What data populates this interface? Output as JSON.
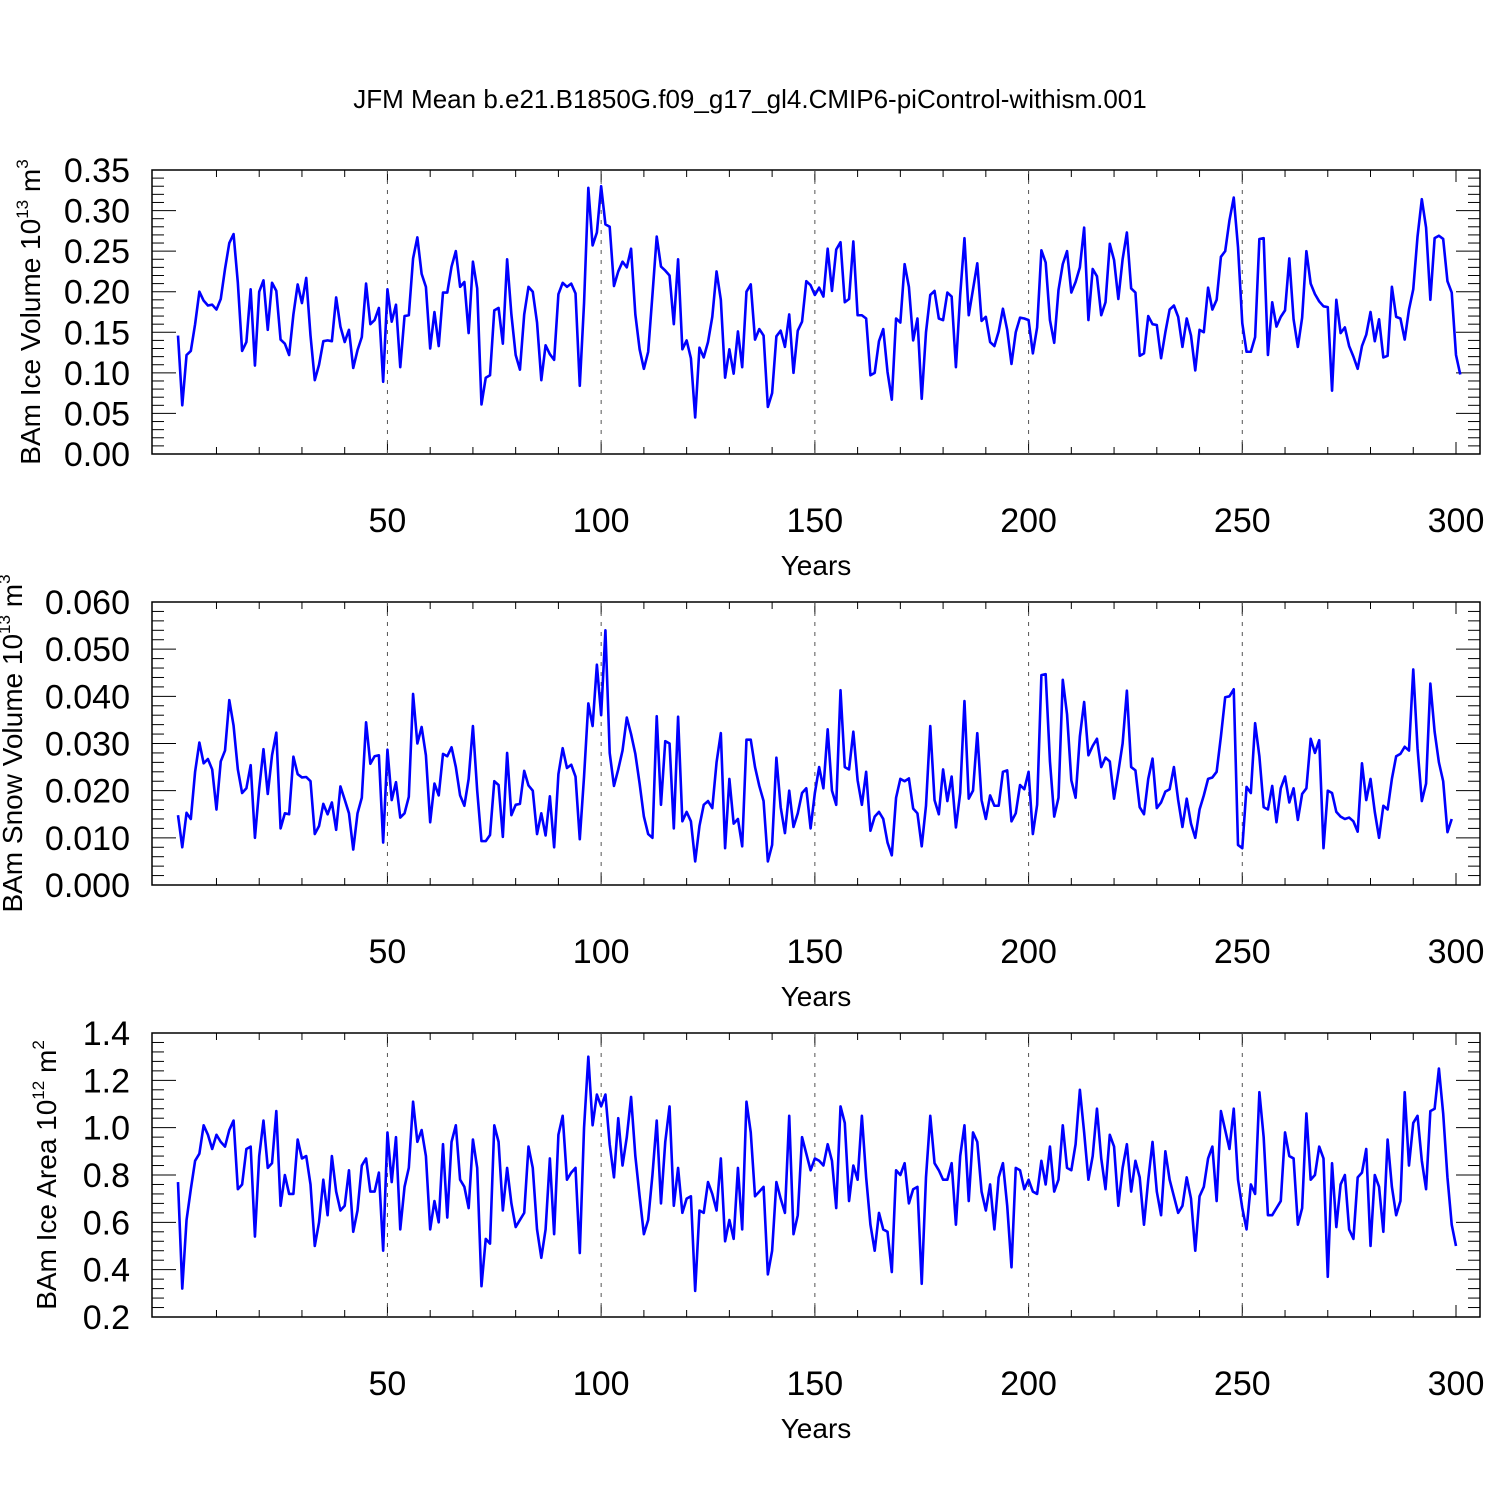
{
  "title": "JFM Mean b.e21.B1850G.f09_g17_gl4.CMIP6-piControl-withism.001",
  "chart_data": [
    {
      "type": "line",
      "ylabel_main": "BAm Ice Volume 10",
      "ylabel_exp": "13",
      "ylabel_unit": " m",
      "ylabel_unit_exp": "3",
      "xlabel": "Years",
      "xlim": [
        1,
        300
      ],
      "ylim": [
        0.0,
        0.35
      ],
      "xticks": [
        50,
        100,
        150,
        200,
        250,
        300
      ],
      "xtick_labels": [
        "50",
        "100",
        "150",
        "200",
        "250",
        "300"
      ],
      "yticks": [
        0.0,
        0.05,
        0.1,
        0.15,
        0.2,
        0.25,
        0.3,
        0.35
      ],
      "ytick_labels": [
        "0.00",
        "0.05",
        "0.10",
        "0.15",
        "0.20",
        "0.25",
        "0.30",
        "0.35"
      ],
      "color": "#0000ff",
      "values": [
        0.146,
        0.06,
        0.122,
        0.127,
        0.16,
        0.2,
        0.189,
        0.183,
        0.184,
        0.178,
        0.191,
        0.228,
        0.26,
        0.271,
        0.211,
        0.127,
        0.138,
        0.203,
        0.109,
        0.2,
        0.214,
        0.153,
        0.211,
        0.201,
        0.141,
        0.136,
        0.122,
        0.172,
        0.209,
        0.186,
        0.217,
        0.146,
        0.091,
        0.11,
        0.139,
        0.14,
        0.139,
        0.193,
        0.157,
        0.138,
        0.153,
        0.106,
        0.128,
        0.144,
        0.21,
        0.16,
        0.165,
        0.18,
        0.089,
        0.203,
        0.163,
        0.184,
        0.107,
        0.17,
        0.171,
        0.241,
        0.267,
        0.222,
        0.206,
        0.13,
        0.175,
        0.133,
        0.199,
        0.199,
        0.231,
        0.25,
        0.206,
        0.212,
        0.149,
        0.237,
        0.204,
        0.061,
        0.094,
        0.097,
        0.177,
        0.18,
        0.136,
        0.24,
        0.172,
        0.122,
        0.104,
        0.172,
        0.206,
        0.2,
        0.162,
        0.091,
        0.134,
        0.123,
        0.116,
        0.197,
        0.211,
        0.206,
        0.21,
        0.198,
        0.084,
        0.186,
        0.328,
        0.257,
        0.273,
        0.33,
        0.283,
        0.28,
        0.207,
        0.225,
        0.237,
        0.23,
        0.253,
        0.172,
        0.129,
        0.105,
        0.126,
        0.196,
        0.268,
        0.231,
        0.226,
        0.22,
        0.16,
        0.24,
        0.129,
        0.14,
        0.118,
        0.045,
        0.131,
        0.119,
        0.138,
        0.169,
        0.225,
        0.19,
        0.094,
        0.129,
        0.099,
        0.151,
        0.107,
        0.2,
        0.209,
        0.141,
        0.154,
        0.146,
        0.058,
        0.075,
        0.145,
        0.152,
        0.132,
        0.172,
        0.1,
        0.152,
        0.163,
        0.213,
        0.208,
        0.196,
        0.205,
        0.194,
        0.253,
        0.201,
        0.252,
        0.261,
        0.187,
        0.191,
        0.262,
        0.171,
        0.171,
        0.167,
        0.097,
        0.1,
        0.139,
        0.154,
        0.101,
        0.067,
        0.167,
        0.162,
        0.234,
        0.206,
        0.14,
        0.167,
        0.068,
        0.15,
        0.196,
        0.201,
        0.167,
        0.165,
        0.199,
        0.194,
        0.107,
        0.196,
        0.266,
        0.171,
        0.203,
        0.235,
        0.164,
        0.169,
        0.138,
        0.133,
        0.151,
        0.179,
        0.153,
        0.111,
        0.15,
        0.168,
        0.167,
        0.165,
        0.124,
        0.156,
        0.251,
        0.236,
        0.165,
        0.137,
        0.202,
        0.234,
        0.25,
        0.199,
        0.212,
        0.23,
        0.279,
        0.165,
        0.228,
        0.219,
        0.171,
        0.187,
        0.259,
        0.239,
        0.191,
        0.24,
        0.273,
        0.204,
        0.199,
        0.121,
        0.124,
        0.17,
        0.16,
        0.159,
        0.118,
        0.15,
        0.178,
        0.183,
        0.169,
        0.132,
        0.167,
        0.146,
        0.103,
        0.153,
        0.15,
        0.205,
        0.178,
        0.19,
        0.243,
        0.25,
        0.288,
        0.316,
        0.255,
        0.161,
        0.126,
        0.126,
        0.144,
        0.265,
        0.266,
        0.122,
        0.187,
        0.157,
        0.169,
        0.177,
        0.241,
        0.166,
        0.132,
        0.168,
        0.25,
        0.21,
        0.197,
        0.188,
        0.182,
        0.181,
        0.078,
        0.19,
        0.149,
        0.156,
        0.133,
        0.12,
        0.105,
        0.133,
        0.147,
        0.175,
        0.139,
        0.166,
        0.119,
        0.121,
        0.206,
        0.169,
        0.167,
        0.141,
        0.178,
        0.203,
        0.268,
        0.314,
        0.279,
        0.19,
        0.266,
        0.269,
        0.265,
        0.213,
        0.199,
        0.122,
        0.098
      ]
    },
    {
      "type": "line",
      "ylabel_main": "BAm Snow Volume 10",
      "ylabel_exp": "13",
      "ylabel_unit": " m",
      "ylabel_unit_exp": "3",
      "xlabel": "Years",
      "xlim": [
        1,
        300
      ],
      "ylim": [
        0.0,
        0.06
      ],
      "xticks": [
        50,
        100,
        150,
        200,
        250,
        300
      ],
      "xtick_labels": [
        "50",
        "100",
        "150",
        "200",
        "250",
        "300"
      ],
      "yticks": [
        0.0,
        0.01,
        0.02,
        0.03,
        0.04,
        0.05,
        0.06
      ],
      "ytick_labels": [
        "0.000",
        "0.010",
        "0.020",
        "0.030",
        "0.040",
        "0.050",
        "0.060"
      ],
      "color": "#0000ff",
      "values": [
        0.0148,
        0.008,
        0.0153,
        0.014,
        0.024,
        0.0302,
        0.0258,
        0.0267,
        0.0245,
        0.016,
        0.0262,
        0.0285,
        0.0392,
        0.0338,
        0.0245,
        0.0195,
        0.0205,
        0.0254,
        0.01,
        0.0205,
        0.0288,
        0.0193,
        0.0275,
        0.0323,
        0.012,
        0.0152,
        0.015,
        0.0272,
        0.0235,
        0.0228,
        0.0229,
        0.022,
        0.0108,
        0.0125,
        0.0172,
        0.015,
        0.0175,
        0.0117,
        0.0209,
        0.0181,
        0.0152,
        0.0075,
        0.0152,
        0.0185,
        0.0345,
        0.0257,
        0.0273,
        0.0275,
        0.009,
        0.0287,
        0.018,
        0.0218,
        0.0143,
        0.0152,
        0.0187,
        0.0405,
        0.03,
        0.0335,
        0.0275,
        0.0133,
        0.0215,
        0.019,
        0.0278,
        0.0273,
        0.0292,
        0.025,
        0.019,
        0.0168,
        0.0225,
        0.0337,
        0.02,
        0.0093,
        0.0093,
        0.0106,
        0.022,
        0.0212,
        0.0102,
        0.028,
        0.0148,
        0.017,
        0.0172,
        0.0242,
        0.0211,
        0.02,
        0.0108,
        0.0152,
        0.0105,
        0.0188,
        0.008,
        0.0235,
        0.029,
        0.0248,
        0.0255,
        0.023,
        0.0097,
        0.023,
        0.0385,
        0.0337,
        0.0467,
        0.036,
        0.054,
        0.028,
        0.021,
        0.0245,
        0.0285,
        0.0355,
        0.032,
        0.0278,
        0.0215,
        0.0145,
        0.0108,
        0.01,
        0.0358,
        0.017,
        0.0305,
        0.03,
        0.012,
        0.0357,
        0.0135,
        0.0155,
        0.0135,
        0.005,
        0.0125,
        0.017,
        0.0178,
        0.0163,
        0.026,
        0.0322,
        0.0078,
        0.0225,
        0.013,
        0.014,
        0.0082,
        0.0308,
        0.0308,
        0.025,
        0.021,
        0.0178,
        0.005,
        0.0085,
        0.027,
        0.0165,
        0.011,
        0.02,
        0.0123,
        0.0152,
        0.0195,
        0.0205,
        0.012,
        0.0195,
        0.025,
        0.0205,
        0.033,
        0.02,
        0.017,
        0.0413,
        0.025,
        0.0245,
        0.0325,
        0.0222,
        0.017,
        0.024,
        0.0115,
        0.0145,
        0.0155,
        0.014,
        0.009,
        0.0063,
        0.0185,
        0.0225,
        0.022,
        0.0226,
        0.0162,
        0.0152,
        0.0082,
        0.0168,
        0.0337,
        0.018,
        0.015,
        0.0245,
        0.0178,
        0.023,
        0.0122,
        0.0195,
        0.039,
        0.0183,
        0.02,
        0.0322,
        0.018,
        0.014,
        0.019,
        0.0168,
        0.0168,
        0.024,
        0.0243,
        0.0135,
        0.0152,
        0.0212,
        0.0203,
        0.024,
        0.0108,
        0.017,
        0.0445,
        0.0447,
        0.0262,
        0.0145,
        0.0185,
        0.0435,
        0.0362,
        0.0222,
        0.0185,
        0.0315,
        0.0388,
        0.0275,
        0.0295,
        0.031,
        0.025,
        0.027,
        0.0262,
        0.0183,
        0.024,
        0.03,
        0.0412,
        0.025,
        0.0243,
        0.0165,
        0.015,
        0.0225,
        0.0268,
        0.0163,
        0.0175,
        0.0198,
        0.0203,
        0.025,
        0.018,
        0.0123,
        0.0183,
        0.013,
        0.01,
        0.016,
        0.019,
        0.0225,
        0.0228,
        0.024,
        0.0315,
        0.0398,
        0.04,
        0.0415,
        0.0085,
        0.0078,
        0.0208,
        0.0195,
        0.0343,
        0.0273,
        0.0165,
        0.016,
        0.021,
        0.0133,
        0.0205,
        0.023,
        0.0175,
        0.0205,
        0.0138,
        0.0193,
        0.0205,
        0.031,
        0.028,
        0.0307,
        0.0078,
        0.02,
        0.0195,
        0.0155,
        0.0145,
        0.014,
        0.0143,
        0.0135,
        0.0113,
        0.0258,
        0.018,
        0.0225,
        0.0155,
        0.01,
        0.0168,
        0.016,
        0.0225,
        0.0273,
        0.0278,
        0.0293,
        0.0285,
        0.0457,
        0.029,
        0.0178,
        0.0215,
        0.0427,
        0.0325,
        0.026,
        0.022,
        0.0112,
        0.014
      ]
    },
    {
      "type": "line",
      "ylabel_main": "BAm Ice Area 10",
      "ylabel_exp": "12",
      "ylabel_unit": " m",
      "ylabel_unit_exp": "2",
      "xlabel": "Years",
      "xlim": [
        1,
        300
      ],
      "ylim": [
        0.2,
        1.4
      ],
      "xticks": [
        50,
        100,
        150,
        200,
        250,
        300
      ],
      "xtick_labels": [
        "50",
        "100",
        "150",
        "200",
        "250",
        "300"
      ],
      "yticks": [
        0.2,
        0.4,
        0.6,
        0.8,
        1.0,
        1.2,
        1.4
      ],
      "ytick_labels": [
        "0.2",
        "0.4",
        "0.6",
        "0.8",
        "1.0",
        "1.2",
        "1.4"
      ],
      "color": "#0000ff",
      "values": [
        0.77,
        0.32,
        0.61,
        0.74,
        0.86,
        0.89,
        1.01,
        0.97,
        0.91,
        0.97,
        0.94,
        0.92,
        0.99,
        1.03,
        0.74,
        0.76,
        0.91,
        0.92,
        0.54,
        0.88,
        1.03,
        0.83,
        0.85,
        1.07,
        0.67,
        0.8,
        0.72,
        0.72,
        0.95,
        0.87,
        0.88,
        0.76,
        0.5,
        0.6,
        0.78,
        0.63,
        0.88,
        0.73,
        0.65,
        0.67,
        0.82,
        0.56,
        0.65,
        0.84,
        0.87,
        0.73,
        0.73,
        0.81,
        0.48,
        0.98,
        0.77,
        0.96,
        0.57,
        0.75,
        0.83,
        1.11,
        0.94,
        0.99,
        0.88,
        0.57,
        0.69,
        0.6,
        0.93,
        0.62,
        0.94,
        1.01,
        0.78,
        0.75,
        0.66,
        0.95,
        0.83,
        0.33,
        0.53,
        0.51,
        1.01,
        0.94,
        0.65,
        0.83,
        0.68,
        0.58,
        0.61,
        0.64,
        0.92,
        0.83,
        0.57,
        0.45,
        0.57,
        0.87,
        0.55,
        0.97,
        1.05,
        0.78,
        0.81,
        0.83,
        0.47,
        1.0,
        1.3,
        1.01,
        1.14,
        1.09,
        1.14,
        0.93,
        0.79,
        1.04,
        0.84,
        0.96,
        1.13,
        0.88,
        0.71,
        0.55,
        0.61,
        0.8,
        1.03,
        0.68,
        0.94,
        1.09,
        0.67,
        0.83,
        0.64,
        0.7,
        0.71,
        0.31,
        0.65,
        0.64,
        0.77,
        0.72,
        0.65,
        0.87,
        0.52,
        0.61,
        0.53,
        0.83,
        0.57,
        1.11,
        0.98,
        0.71,
        0.73,
        0.75,
        0.38,
        0.48,
        0.77,
        0.7,
        0.64,
        1.05,
        0.55,
        0.63,
        0.96,
        0.89,
        0.82,
        0.87,
        0.86,
        0.84,
        0.93,
        0.86,
        0.66,
        1.09,
        1.02,
        0.69,
        0.84,
        0.78,
        1.05,
        0.79,
        0.59,
        0.48,
        0.64,
        0.57,
        0.56,
        0.39,
        0.82,
        0.8,
        0.85,
        0.68,
        0.74,
        0.75,
        0.34,
        0.79,
        1.05,
        0.85,
        0.82,
        0.78,
        0.78,
        0.85,
        0.59,
        0.88,
        1.01,
        0.69,
        0.98,
        0.94,
        0.73,
        0.65,
        0.76,
        0.57,
        0.79,
        0.85,
        0.67,
        0.41,
        0.83,
        0.82,
        0.74,
        0.78,
        0.73,
        0.72,
        0.86,
        0.76,
        0.92,
        0.73,
        0.78,
        1.01,
        0.83,
        0.82,
        0.93,
        1.16,
        0.98,
        0.78,
        0.88,
        1.08,
        0.87,
        0.74,
        0.97,
        0.92,
        0.67,
        0.83,
        0.93,
        0.73,
        0.86,
        0.79,
        0.59,
        0.78,
        0.94,
        0.73,
        0.63,
        0.9,
        0.78,
        0.71,
        0.64,
        0.67,
        0.79,
        0.7,
        0.48,
        0.71,
        0.75,
        0.87,
        0.92,
        0.69,
        1.07,
        0.99,
        0.91,
        1.08,
        0.78,
        0.66,
        0.57,
        0.76,
        0.72,
        1.15,
        0.96,
        0.63,
        0.63,
        0.66,
        0.69,
        0.98,
        0.88,
        0.87,
        0.59,
        0.66,
        1.06,
        0.78,
        0.8,
        0.92,
        0.87,
        0.37,
        0.85,
        0.58,
        0.76,
        0.8,
        0.57,
        0.53,
        0.79,
        0.81,
        0.91,
        0.5,
        0.8,
        0.75,
        0.56,
        0.95,
        0.75,
        0.63,
        0.69,
        1.15,
        0.84,
        1.02,
        1.05,
        0.86,
        0.74,
        1.07,
        1.08,
        1.25,
        1.06,
        0.79,
        0.59,
        0.5
      ]
    }
  ]
}
